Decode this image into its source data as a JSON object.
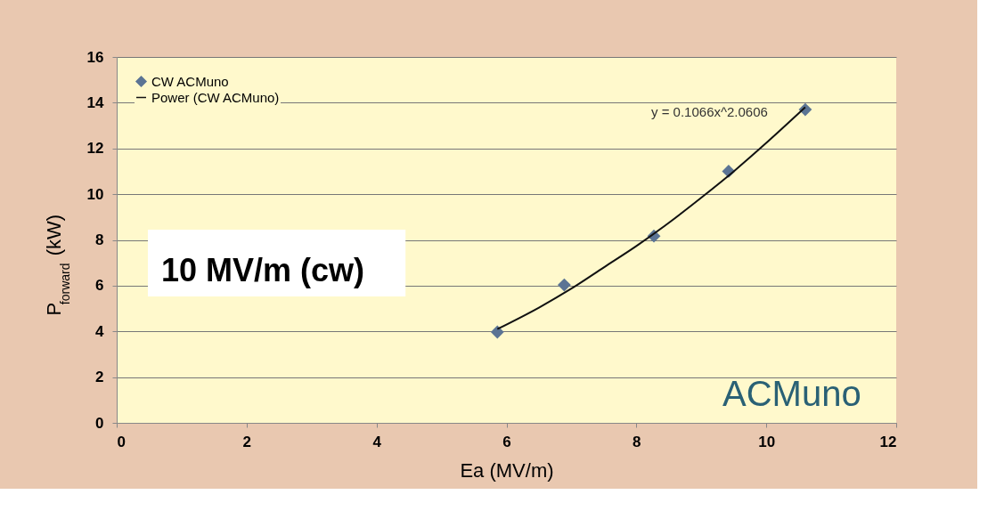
{
  "chart_data": {
    "type": "scatter",
    "xlabel": "Ea (MV/m)",
    "ylabel": "P$_{forward}$ (kW)",
    "xlim": [
      0,
      12
    ],
    "xticks": [
      0,
      2,
      4,
      6,
      8,
      10,
      12
    ],
    "ylim": [
      0,
      16
    ],
    "yticks": [
      0,
      2,
      4,
      6,
      8,
      10,
      12,
      14,
      16
    ],
    "grid": "y",
    "legend": "top left",
    "series": [
      {
        "name": "CW ACMuno",
        "marker": "diamond",
        "color": "#5b7494",
        "x": [
          5.86,
          6.89,
          8.27,
          9.42,
          10.6
        ],
        "values": [
          3.97,
          6.03,
          8.17,
          11.0,
          13.7
        ]
      },
      {
        "name": "Power (CW ACMuno)",
        "type": "line",
        "color": "#111111",
        "marker": "none",
        "line_style": "solid",
        "x": [
          5.86,
          6.5,
          7.0,
          7.5,
          8.0,
          8.5,
          9.0,
          9.5,
          10.0,
          10.6
        ],
        "values": [
          4.1,
          5.04,
          5.87,
          6.8,
          7.73,
          8.75,
          9.85,
          11.0,
          12.24,
          13.8
        ]
      }
    ],
    "annotations": [
      "y = 0.1066x^2.0606",
      "10 MV/m (cw)",
      "ACMuno"
    ]
  }
}
